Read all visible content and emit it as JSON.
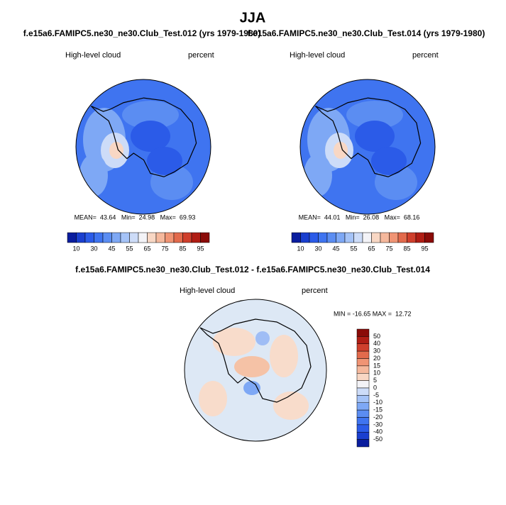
{
  "title": "JJA",
  "panels": [
    {
      "subtitle": "f.e15a6.FAMIPC5.ne30_ne30.Club_Test.012 (yrs 1979-1980)",
      "left_label": "High-level cloud",
      "right_label": "percent",
      "stats": "MEAN=  43.64   Min=  24.98   Max=  69.93",
      "colorbar": [
        10,
        30,
        45,
        55,
        65,
        75,
        85,
        95
      ]
    },
    {
      "subtitle": "f.e15a6.FAMIPC5.ne30_ne30.Club_Test.014 (yrs 1979-1980)",
      "left_label": "High-level cloud",
      "right_label": "percent",
      "stats": "MEAN=  44.01   Min=  26.08   Max=  68.16",
      "colorbar": [
        10,
        30,
        45,
        55,
        65,
        75,
        85,
        95
      ]
    }
  ],
  "diff": {
    "subtitle": "f.e15a6.FAMIPC5.ne30_ne30.Club_Test.012 - f.e15a6.FAMIPC5.ne30_ne30.Club_Test.014",
    "left_label": "High-level cloud",
    "right_label": "percent",
    "stats": "MIN = -16.65 MAX =  12.72",
    "colorbar": [
      50,
      40,
      30,
      20,
      15,
      10,
      5,
      0,
      -5,
      -10,
      -15,
      -20,
      -30,
      -40,
      -50
    ]
  }
}
